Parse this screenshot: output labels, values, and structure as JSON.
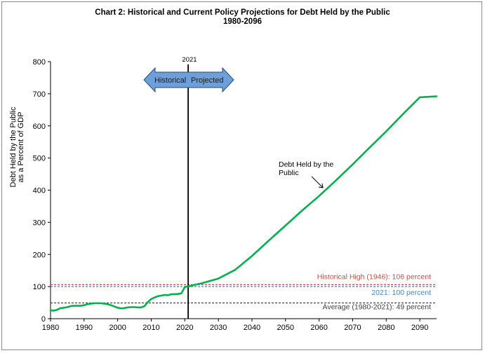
{
  "chart_data": {
    "type": "line",
    "title": "Chart 2:  Historical and Current Policy Projections for Debt Held by the Public",
    "subtitle": "1980-2096",
    "ylabel_line1": "Debt Held by the Public",
    "ylabel_line2": "as a Percent of GDP",
    "xlim": [
      1980,
      2095
    ],
    "ylim": [
      0,
      800
    ],
    "x_ticks": [
      1980,
      1990,
      2000,
      2010,
      2020,
      2030,
      2040,
      2050,
      2060,
      2070,
      2080,
      2090
    ],
    "y_ticks": [
      0,
      100,
      200,
      300,
      400,
      500,
      600,
      700,
      800
    ],
    "grid": false,
    "series": [
      {
        "name": "Debt Held by the Public",
        "color": "#00b050",
        "x": [
          1980,
          1981,
          1982,
          1983,
          1984,
          1985,
          1986,
          1987,
          1988,
          1989,
          1990,
          1991,
          1992,
          1993,
          1994,
          1995,
          1996,
          1997,
          1998,
          1999,
          2000,
          2001,
          2002,
          2003,
          2004,
          2005,
          2006,
          2007,
          2008,
          2009,
          2010,
          2011,
          2012,
          2013,
          2014,
          2015,
          2016,
          2017,
          2018,
          2019,
          2020,
          2021,
          2022,
          2025,
          2030,
          2035,
          2040,
          2045,
          2050,
          2055,
          2060,
          2065,
          2070,
          2075,
          2080,
          2085,
          2090,
          2095
        ],
        "values": [
          26,
          25,
          28,
          33,
          34,
          36,
          39,
          40,
          40,
          40,
          42,
          45,
          47,
          48,
          48,
          48,
          47,
          45,
          42,
          38,
          34,
          32,
          33,
          35,
          36,
          36,
          35,
          35,
          39,
          52,
          61,
          66,
          70,
          72,
          74,
          73,
          76,
          76,
          77,
          79,
          99,
          100,
          103,
          110,
          125,
          152,
          195,
          243,
          290,
          337,
          382,
          430,
          480,
          532,
          583,
          637,
          689,
          692
        ]
      }
    ],
    "reference_lines": [
      {
        "label": "Historical High (1946): 106 percent",
        "value": 106,
        "color": "#c0504d"
      },
      {
        "label": "2021: 100 percent",
        "value": 100,
        "color": "#4f81bd"
      },
      {
        "label": "Average (1980-2021): 49 percent",
        "value": 49,
        "color": "#404040"
      }
    ],
    "divider": {
      "x": 2021,
      "label": "2021"
    },
    "arrow_labels": {
      "left": "Historical",
      "right": "Projected"
    },
    "annotation": {
      "line1": "Debt Held by the",
      "line2": "Public"
    }
  }
}
